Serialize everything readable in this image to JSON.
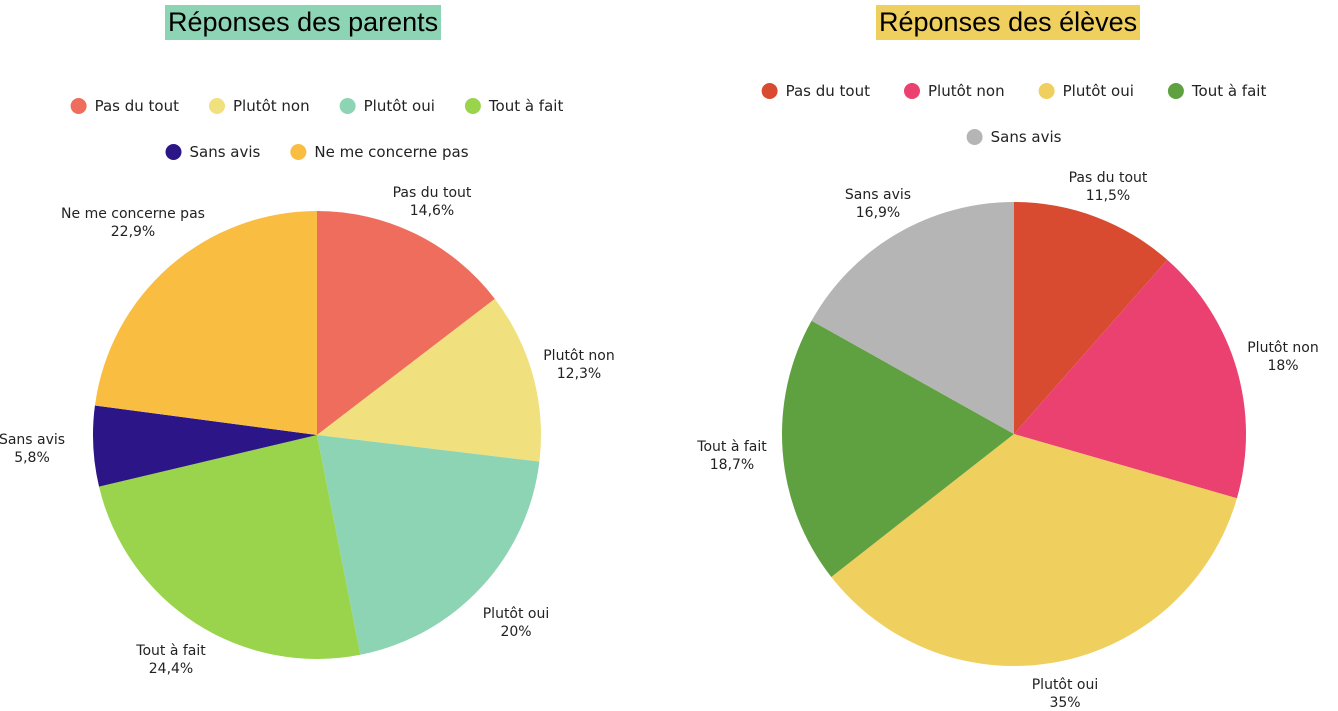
{
  "chart_data": [
    {
      "type": "pie",
      "title": "Réponses des parents",
      "title_bg": "#8dd4b5",
      "categories": [
        "Pas du tout",
        "Plutôt non",
        "Plutôt oui",
        "Tout à fait",
        "Sans avis",
        "Ne me concerne pas"
      ],
      "values": [
        14.6,
        12.3,
        20,
        24.4,
        5.8,
        22.9
      ],
      "value_labels": [
        "14,6%",
        "12,3%",
        "20%",
        "24,4%",
        "5,8%",
        "22,9%"
      ],
      "colors": [
        "#ee6d5c",
        "#f0e17e",
        "#8dd4b5",
        "#99d44c",
        "#2c1687",
        "#f9bd41"
      ],
      "legend": "top"
    },
    {
      "type": "pie",
      "title": "Réponses des élèves",
      "title_bg": "#efcf5e",
      "categories": [
        "Pas du tout",
        "Plutôt non",
        "Plutôt oui",
        "Tout à fait",
        "Sans avis"
      ],
      "values": [
        11.5,
        18,
        35,
        18.7,
        16.9
      ],
      "value_labels": [
        "11,5%",
        "18%",
        "35%",
        "18,7%",
        "16,9%"
      ],
      "colors": [
        "#d94b31",
        "#ea4171",
        "#efcf5e",
        "#5fa140",
        "#b5b5b5"
      ],
      "legend": "top"
    }
  ]
}
